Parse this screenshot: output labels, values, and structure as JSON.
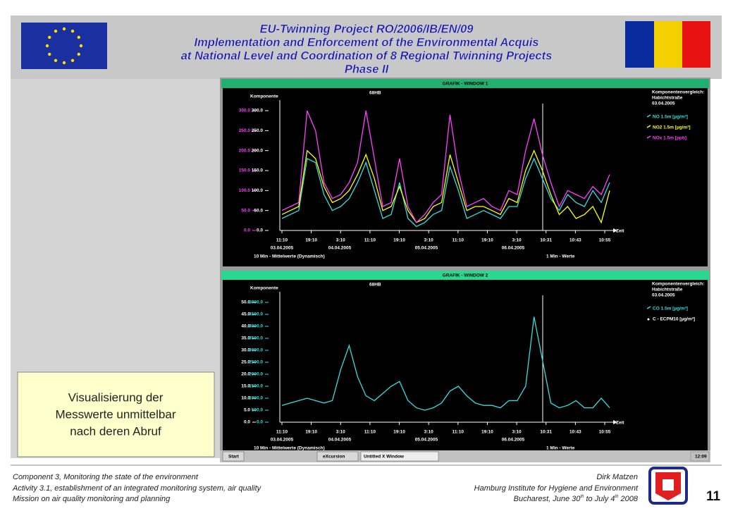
{
  "header": {
    "title_lines": [
      "EU-Twinning Project RO/2006/IB/EN/09",
      "Implementation and Enforcement of the Environmental Acquis",
      "at National Level and Coordination of 8 Regional Twinning Projects",
      "Phase II"
    ]
  },
  "windows": [
    {
      "title": "GRAFIK - WINDOW 1",
      "station": "68HB",
      "axis_label": "Komponente",
      "ylim": [
        0,
        300
      ],
      "ytick_color": "#ff40ff",
      "yticks": [
        {
          "value": 0,
          "label": "0.0"
        },
        {
          "value": 50,
          "label": "50.0"
        },
        {
          "value": 100,
          "label": "100.0"
        },
        {
          "value": 150,
          "label": "150.0"
        },
        {
          "value": 200,
          "label": "200.0"
        },
        {
          "value": 250,
          "label": "250.0"
        },
        {
          "value": 300,
          "label": "300.0"
        }
      ],
      "y2lim": [
        0,
        300
      ],
      "y2tick_color": "#ffffff",
      "y2ticks": [
        {
          "value": 0,
          "label": "0.0"
        },
        {
          "value": 50,
          "label": "50.0"
        },
        {
          "value": 100,
          "label": "100.0"
        },
        {
          "value": 150,
          "label": "150.0"
        },
        {
          "value": 200,
          "label": "200.0"
        },
        {
          "value": 250,
          "label": "250.0"
        },
        {
          "value": 300,
          "label": "300.0"
        }
      ],
      "xticks": [
        "11:10",
        "19:10",
        "3:10",
        "11:10",
        "19:10",
        "3:10",
        "11:10",
        "19:10",
        "3:10",
        "10:31",
        "10:43",
        "10:55"
      ],
      "dates": [
        "03.04.2005",
        "04.04.2005",
        "05.04.2005",
        "06.04.2005"
      ],
      "time_label": "Zeit",
      "footer_left": "10 Min - Mittelwerte  (Dynamisch)",
      "footer_right": "1 Min - Werte",
      "legend_heading": [
        "Komponentenvergleich:",
        "Habichtstraße",
        "03.04.2005"
      ],
      "series": [
        {
          "name": "NO 1.5m [µg/m³]",
          "color": "#30e0e0",
          "axis": "y2",
          "values": [
            30,
            40,
            50,
            180,
            170,
            90,
            50,
            60,
            80,
            120,
            170,
            100,
            30,
            40,
            120,
            30,
            10,
            20,
            40,
            50,
            160,
            100,
            30,
            40,
            50,
            40,
            30,
            60,
            60,
            130,
            180,
            130,
            80,
            50,
            90,
            70,
            60,
            100,
            70,
            120
          ]
        },
        {
          "name": "NO2 1.5m [µg/m³]",
          "color": "#ffff00",
          "axis": "y2",
          "values": [
            40,
            50,
            60,
            200,
            180,
            110,
            70,
            80,
            100,
            140,
            190,
            130,
            50,
            60,
            110,
            50,
            20,
            30,
            60,
            70,
            190,
            120,
            50,
            60,
            60,
            50,
            40,
            80,
            70,
            150,
            200,
            150,
            90,
            40,
            60,
            30,
            40,
            60,
            20,
            100
          ]
        },
        {
          "name": "NOx 1.5m [ppb]",
          "color": "#ff40ff",
          "axis": "y",
          "values": [
            50,
            60,
            70,
            300,
            250,
            120,
            80,
            90,
            120,
            170,
            300,
            180,
            60,
            70,
            180,
            60,
            20,
            40,
            70,
            90,
            290,
            150,
            60,
            70,
            80,
            60,
            50,
            100,
            90,
            200,
            280,
            190,
            120,
            60,
            100,
            90,
            80,
            110,
            90,
            140
          ]
        }
      ],
      "legend_extra": []
    },
    {
      "title": "GRAFIK - WINDOW 2",
      "station": "68HB",
      "axis_label": "Komponente",
      "ylim": [
        0,
        50
      ],
      "ytick_color": "#ffffff",
      "yticks": [
        {
          "value": 0,
          "label": "0.0"
        },
        {
          "value": 5,
          "label": "5.0"
        },
        {
          "value": 10,
          "label": "10.0"
        },
        {
          "value": 15,
          "label": "15.0"
        },
        {
          "value": 20,
          "label": "20.0"
        },
        {
          "value": 25,
          "label": "25.0"
        },
        {
          "value": 30,
          "label": "30.0"
        },
        {
          "value": 35,
          "label": "35.0"
        },
        {
          "value": 40,
          "label": "40.0"
        },
        {
          "value": 45,
          "label": "45.0"
        },
        {
          "value": 50,
          "label": "50.0"
        }
      ],
      "y2lim": [
        0,
        5000
      ],
      "y2tick_color": "#30e0e0",
      "y2ticks": [
        {
          "value": 0,
          "label": "0.0"
        },
        {
          "value": 500,
          "label": "500.0"
        },
        {
          "value": 1000,
          "label": "1000.0"
        },
        {
          "value": 1500,
          "label": "1500.0"
        },
        {
          "value": 2000,
          "label": "2000.0"
        },
        {
          "value": 2500,
          "label": "2500.0"
        },
        {
          "value": 3000,
          "label": "3000.0"
        },
        {
          "value": 3500,
          "label": "3500.0"
        },
        {
          "value": 4000,
          "label": "4000.0"
        },
        {
          "value": 4500,
          "label": "4500.0"
        },
        {
          "value": 5000,
          "label": "5000.0"
        }
      ],
      "xticks": [
        "11:10",
        "19:10",
        "3:10",
        "11:10",
        "19:10",
        "3:10",
        "11:10",
        "19:10",
        "3:10",
        "10:31",
        "10:43",
        "10:55"
      ],
      "dates": [
        "03.04.2005",
        "04.04.2005",
        "05.04.2005",
        "06.04.2005"
      ],
      "time_label": "Zeit",
      "footer_left": "10 Min - Mittelwerte  (Dynamisch)",
      "footer_right": "1 Min - Werte",
      "legend_heading": [
        "Komponentenvergleich:",
        "Habichtstraße",
        "03.04.2005"
      ],
      "series": [
        {
          "name": "CO 1.5m [µg/m³]",
          "color": "#30e0e0",
          "axis": "y2",
          "values": [
            700,
            800,
            900,
            1000,
            900,
            800,
            900,
            2200,
            3200,
            1900,
            1100,
            900,
            1200,
            1500,
            1700,
            900,
            600,
            500,
            600,
            800,
            1300,
            1500,
            1100,
            800,
            700,
            700,
            600,
            900,
            900,
            1500,
            4400,
            2600,
            800,
            600,
            700,
            900,
            600,
            600,
            1000,
            600
          ]
        }
      ],
      "legend_extra": [
        "C - ECPM10 [µg/m³]"
      ]
    }
  ],
  "taskbar": {
    "start": "Start",
    "items": [
      "eXcursion",
      "Untitled X Window"
    ],
    "clock": "12:09"
  },
  "callout": [
    "Visualisierung der",
    "Messwerte unmittelbar",
    "nach deren Abruf"
  ],
  "footer": {
    "left": [
      "Component  3, Monitoring the state of the environment",
      "Activity 3.1, establishment of an integrated monitoring system, air quality",
      "Mission on air quality monitoring and planning"
    ],
    "right": [
      "Dirk Matzen",
      "Hamburg  Institute for Hygiene and Environment"
    ],
    "date_parts": [
      "Bucharest, June 30",
      "th",
      " to July 4",
      "th",
      " 2008"
    ],
    "page": "11"
  }
}
